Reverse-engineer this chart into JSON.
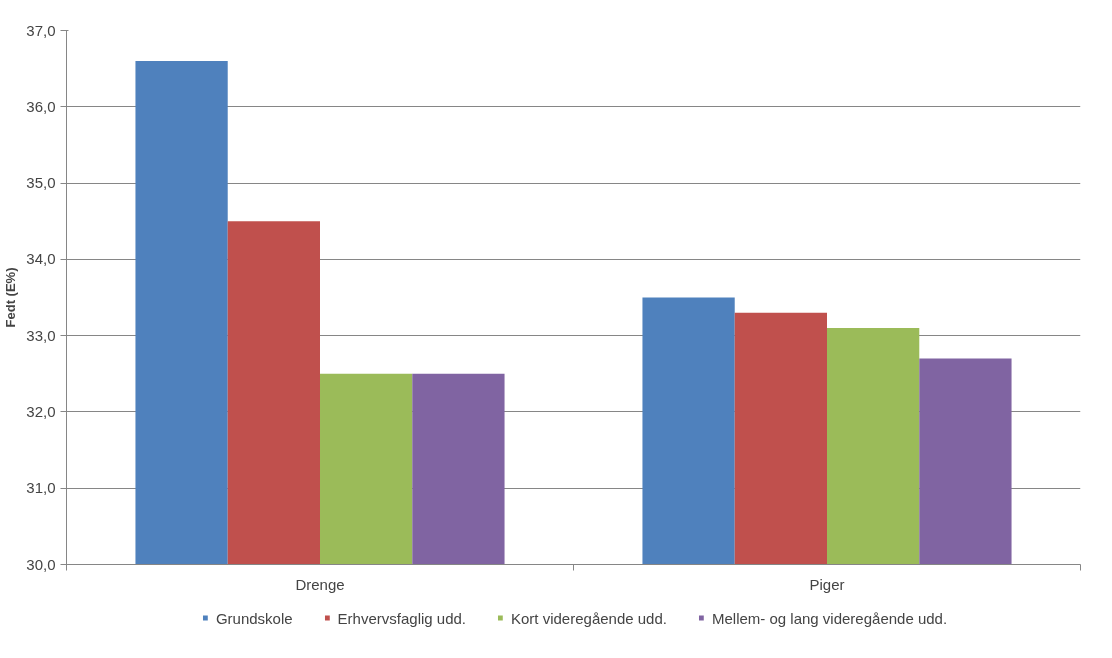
{
  "chart_data": {
    "type": "bar",
    "ylabel": "Fedt (E%)",
    "categories": [
      "Drenge",
      "Piger"
    ],
    "series": [
      {
        "name": "Grundskole",
        "color": "#4f81bd",
        "values": [
          36.6,
          33.5
        ]
      },
      {
        "name": "Erhvervsfaglig udd.",
        "color": "#c0504d",
        "values": [
          34.5,
          33.3
        ]
      },
      {
        "name": "Kort videregående udd.",
        "color": "#9bbb59",
        "values": [
          32.5,
          33.1
        ]
      },
      {
        "name": "Mellem- og lang videregående udd.",
        "color": "#8064a2",
        "values": [
          32.5,
          32.7
        ]
      }
    ],
    "ylim": [
      30,
      37
    ],
    "yticks": [
      {
        "value": 30,
        "label": "30,0"
      },
      {
        "value": 31,
        "label": "31,0"
      },
      {
        "value": 32,
        "label": "32,0"
      },
      {
        "value": 33,
        "label": "33,0"
      },
      {
        "value": 34,
        "label": "34,0"
      },
      {
        "value": 35,
        "label": "35,0"
      },
      {
        "value": 36,
        "label": "36,0"
      },
      {
        "value": 37,
        "label": "37,0"
      }
    ],
    "grid": "y",
    "legend": "bottom"
  }
}
